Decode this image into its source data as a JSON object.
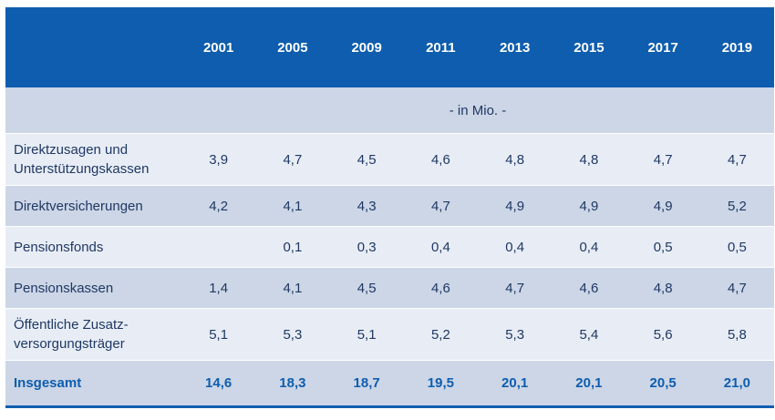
{
  "chart_data": {
    "type": "table",
    "unit_label": "- in Mio. -",
    "columns": [
      "2001",
      "2005",
      "2009",
      "2011",
      "2013",
      "2015",
      "2017",
      "2019"
    ],
    "rows": [
      {
        "label": "Direktzusagen und Unterstützungskassen",
        "values": [
          "3,9",
          "4,7",
          "4,5",
          "4,6",
          "4,8",
          "4,8",
          "4,7",
          "4,7"
        ]
      },
      {
        "label": "Direktversicherungen",
        "values": [
          "4,2",
          "4,1",
          "4,3",
          "4,7",
          "4,9",
          "4,9",
          "4,9",
          "5,2"
        ]
      },
      {
        "label": "Pensionsfonds",
        "values": [
          "",
          "0,1",
          "0,3",
          "0,4",
          "0,4",
          "0,4",
          "0,5",
          "0,5"
        ]
      },
      {
        "label": "Pensionskassen",
        "values": [
          "1,4",
          "4,1",
          "4,5",
          "4,6",
          "4,7",
          "4,6",
          "4,8",
          "4,7"
        ]
      },
      {
        "label": "Öffentliche Zusatz-versorgungsträger",
        "values": [
          "5,1",
          "5,3",
          "5,1",
          "5,2",
          "5,3",
          "5,4",
          "5,6",
          "5,8"
        ]
      }
    ],
    "total": {
      "label": "Insgesamt",
      "values": [
        "14,6",
        "18,3",
        "18,7",
        "19,5",
        "20,1",
        "20,1",
        "20,5",
        "21,0"
      ]
    },
    "colors": {
      "header_bg": "#0e5dae",
      "header_text": "#ffffff",
      "row_light": "#e8edf5",
      "row_dark": "#ccd6e6",
      "body_text": "#1f3864",
      "total_text": "#0e5dae"
    }
  }
}
